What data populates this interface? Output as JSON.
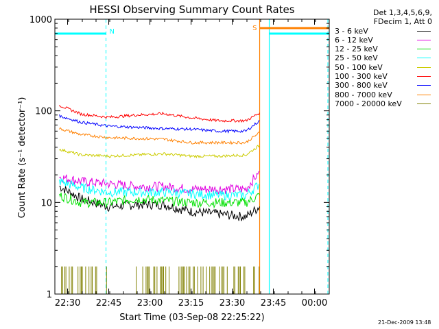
{
  "chart_data": {
    "type": "line",
    "title": "HESSI Observing Summary Count Rates",
    "xlabel": "Start Time (03-Sep-08 22:25:22)",
    "ylabel": "Count Rate (s⁻¹ detector⁻¹)",
    "y_scale": "log",
    "ylim": [
      1,
      1000
    ],
    "xlim": [
      "22:25:22",
      "00:05:22"
    ],
    "x_ticks": [
      "22:30",
      "22:45",
      "23:00",
      "23:15",
      "23:30",
      "23:45",
      "00:00"
    ],
    "y_ticks": [
      "1",
      "10",
      "100",
      "1000"
    ],
    "grid": false,
    "legend_position": "right-outside",
    "legend_header": [
      "Det 1,3,4,5,6,9,",
      "FDecim 1, Att 0"
    ],
    "x": [
      "22:27",
      "22:35",
      "22:45",
      "22:55",
      "23:05",
      "23:15",
      "23:25",
      "23:35",
      "23:40",
      "23:41"
    ],
    "series": [
      {
        "name": "3 - 6 keV",
        "color": "#000000",
        "values": [
          15,
          11,
          9,
          9.5,
          9.5,
          8,
          7.5,
          7,
          9,
          null
        ]
      },
      {
        "name": "6 - 12 keV",
        "color": "#e000e0",
        "values": [
          19,
          17,
          16,
          15,
          15,
          14,
          14,
          14,
          22,
          null
        ]
      },
      {
        "name": "12 - 25 keV",
        "color": "#00e000",
        "values": [
          12,
          10,
          10,
          11,
          10.5,
          10,
          10,
          10,
          12,
          null
        ]
      },
      {
        "name": "25 - 50 keV",
        "color": "#00ffff",
        "values": [
          17,
          14.5,
          13,
          13,
          13,
          12.5,
          12,
          12,
          16,
          null
        ]
      },
      {
        "name": "50 - 100 keV",
        "color": "#cccc00",
        "values": [
          38,
          33,
          32,
          33,
          34,
          32,
          32,
          33,
          42,
          null
        ]
      },
      {
        "name": "100 - 300 keV",
        "color": "#ff0000",
        "values": [
          115,
          92,
          85,
          90,
          93,
          84,
          78,
          78,
          95,
          null
        ]
      },
      {
        "name": "300 - 800 keV",
        "color": "#0000ff",
        "values": [
          88,
          75,
          68,
          66,
          64,
          63,
          60,
          60,
          78,
          null
        ]
      },
      {
        "name": "800 - 7000 keV",
        "color": "#ff8000",
        "values": [
          64,
          55,
          51,
          50,
          49,
          45,
          45,
          45,
          58,
          null
        ]
      },
      {
        "name": "7000 - 20000 keV",
        "color": "#808000",
        "values": [
          2,
          2,
          null,
          2,
          2,
          2,
          2,
          2,
          4,
          null
        ]
      }
    ],
    "annotations": [
      {
        "label": "N",
        "color": "#00ffff",
        "type": "night",
        "from": "22:25:22",
        "to": "22:44:00"
      },
      {
        "label": "",
        "color": "#00ffff",
        "type": "night",
        "from": "23:43:30",
        "to": "00:05:22"
      },
      {
        "label": "S",
        "color": "#ff8000",
        "type": "saa",
        "from": "23:40:00",
        "to": "00:05:22"
      }
    ]
  },
  "footer": "21-Dec-2009 13:48"
}
